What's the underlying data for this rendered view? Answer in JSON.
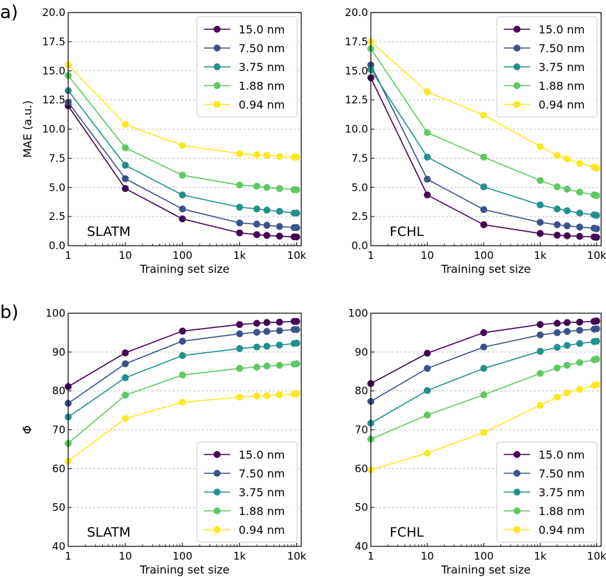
{
  "panel_labels": [
    "a)",
    "b)"
  ],
  "legend": {
    "entries": [
      "15.0 nm",
      "7.50 nm",
      "3.75 nm",
      "1.88 nm",
      "0.94 nm"
    ],
    "colors": [
      "#440154",
      "#3b528b",
      "#21918c",
      "#5ec962",
      "#fde725"
    ]
  },
  "chart_data": [
    {
      "id": "a-left",
      "type": "line",
      "model_label": "SLATM",
      "xlabel": "Training set size",
      "ylabel": "MAE (a.u.)",
      "xscale": "log",
      "xlim": [
        1,
        12000
      ],
      "xticks": [
        1,
        10,
        100,
        1000,
        10000
      ],
      "xtick_labels": [
        "1",
        "10",
        "100",
        "1k",
        "10k"
      ],
      "ylim": [
        0,
        20
      ],
      "yticks": [
        0,
        2.5,
        5,
        7.5,
        10,
        12.5,
        15,
        17.5,
        20
      ],
      "ytick_labels": [
        "0.0",
        "2.5",
        "5.0",
        "7.5",
        "10.0",
        "12.5",
        "15.0",
        "17.5",
        "20.0"
      ],
      "legend_position": "top-right",
      "x": [
        1,
        10,
        100,
        1000,
        2000,
        3000,
        5000,
        9000,
        10000
      ],
      "series": [
        {
          "name": "15.0 nm",
          "values": [
            12.0,
            4.9,
            2.3,
            1.1,
            0.95,
            0.88,
            0.82,
            0.76,
            0.75
          ]
        },
        {
          "name": "7.50 nm",
          "values": [
            12.3,
            5.75,
            3.15,
            1.95,
            1.85,
            1.75,
            1.65,
            1.55,
            1.55
          ]
        },
        {
          "name": "3.75 nm",
          "values": [
            13.3,
            6.9,
            4.35,
            3.3,
            3.15,
            3.05,
            2.95,
            2.8,
            2.8
          ]
        },
        {
          "name": "1.88 nm",
          "values": [
            14.6,
            8.4,
            6.05,
            5.2,
            5.1,
            5.0,
            4.9,
            4.8,
            4.8
          ]
        },
        {
          "name": "0.94 nm",
          "values": [
            15.5,
            10.4,
            8.6,
            7.9,
            7.8,
            7.75,
            7.65,
            7.6,
            7.6
          ]
        }
      ]
    },
    {
      "id": "a-right",
      "type": "line",
      "model_label": "FCHL",
      "xlabel": "Training set size",
      "ylabel": "",
      "xscale": "log",
      "xlim": [
        1,
        12000
      ],
      "xticks": [
        1,
        10,
        100,
        1000,
        10000
      ],
      "xtick_labels": [
        "1",
        "10",
        "100",
        "1k",
        "10k"
      ],
      "ylim": [
        0,
        20
      ],
      "yticks": [
        0,
        2.5,
        5,
        7.5,
        10,
        12.5,
        15,
        17.5,
        20
      ],
      "ytick_labels": [
        "0.0",
        "2.5",
        "5.0",
        "7.5",
        "10.0",
        "12.5",
        "15.0",
        "17.5",
        "20.0"
      ],
      "legend_position": "top-right",
      "x": [
        1,
        10,
        100,
        1000,
        2000,
        3000,
        5000,
        9000,
        10000
      ],
      "series": [
        {
          "name": "15.0 nm",
          "values": [
            14.4,
            4.35,
            1.8,
            1.05,
            0.9,
            0.85,
            0.8,
            0.75,
            0.72
          ]
        },
        {
          "name": "7.50 nm",
          "values": [
            15.5,
            5.7,
            3.1,
            2.0,
            1.8,
            1.7,
            1.6,
            1.5,
            1.45
          ]
        },
        {
          "name": "3.75 nm",
          "values": [
            15.1,
            7.6,
            5.05,
            3.5,
            3.15,
            3.0,
            2.8,
            2.65,
            2.6
          ]
        },
        {
          "name": "1.88 nm",
          "values": [
            16.9,
            9.7,
            7.6,
            5.6,
            5.05,
            4.85,
            4.6,
            4.35,
            4.3
          ]
        },
        {
          "name": "0.94 nm",
          "values": [
            17.5,
            13.2,
            11.2,
            8.5,
            7.75,
            7.45,
            7.05,
            6.75,
            6.65
          ]
        }
      ]
    },
    {
      "id": "b-left",
      "type": "line",
      "model_label": "SLATM",
      "xlabel": "Training set size",
      "ylabel": "Φ̄",
      "xscale": "log",
      "xlim": [
        1,
        12000
      ],
      "xticks": [
        1,
        10,
        100,
        1000,
        10000
      ],
      "xtick_labels": [
        "1",
        "10",
        "100",
        "1k",
        "10k"
      ],
      "ylim": [
        40,
        100
      ],
      "yticks": [
        40,
        50,
        60,
        70,
        80,
        90,
        100
      ],
      "ytick_labels": [
        "40",
        "50",
        "60",
        "70",
        "80",
        "90",
        "100"
      ],
      "legend_position": "bottom-right",
      "x": [
        1,
        10,
        100,
        1000,
        2000,
        3000,
        5000,
        9000,
        10000
      ],
      "series": [
        {
          "name": "15.0 nm",
          "values": [
            81.1,
            89.8,
            95.4,
            97.1,
            97.4,
            97.6,
            97.7,
            97.9,
            97.9
          ]
        },
        {
          "name": "7.50 nm",
          "values": [
            76.8,
            87.0,
            92.8,
            94.7,
            95.1,
            95.3,
            95.5,
            95.8,
            95.8
          ]
        },
        {
          "name": "3.75 nm",
          "values": [
            73.3,
            83.4,
            89.1,
            90.9,
            91.3,
            91.5,
            91.8,
            92.2,
            92.3
          ]
        },
        {
          "name": "1.88 nm",
          "values": [
            66.5,
            78.9,
            84.1,
            85.8,
            86.1,
            86.4,
            86.6,
            86.9,
            87.0
          ]
        },
        {
          "name": "0.94 nm",
          "values": [
            61.9,
            72.9,
            77.1,
            78.4,
            78.7,
            78.8,
            79.0,
            79.2,
            79.3
          ]
        }
      ]
    },
    {
      "id": "b-right",
      "type": "line",
      "model_label": "FCHL",
      "xlabel": "Training set size",
      "ylabel": "",
      "xscale": "log",
      "xlim": [
        1,
        12000
      ],
      "xticks": [
        1,
        10,
        100,
        1000,
        10000
      ],
      "xtick_labels": [
        "1",
        "10",
        "100",
        "1k",
        "10k"
      ],
      "ylim": [
        40,
        100
      ],
      "yticks": [
        40,
        50,
        60,
        70,
        80,
        90,
        100
      ],
      "ytick_labels": [
        "40",
        "50",
        "60",
        "70",
        "80",
        "90",
        "100"
      ],
      "legend_position": "bottom-right",
      "x": [
        1,
        10,
        100,
        1000,
        2000,
        3000,
        5000,
        9000,
        10000
      ],
      "series": [
        {
          "name": "15.0 nm",
          "values": [
            81.9,
            89.7,
            95.0,
            97.1,
            97.4,
            97.6,
            97.7,
            97.9,
            98.0
          ]
        },
        {
          "name": "7.50 nm",
          "values": [
            77.3,
            85.8,
            91.3,
            94.4,
            95.0,
            95.3,
            95.6,
            95.9,
            96.0
          ]
        },
        {
          "name": "3.75 nm",
          "values": [
            71.7,
            80.1,
            85.8,
            90.2,
            91.2,
            91.7,
            92.2,
            92.7,
            92.8
          ]
        },
        {
          "name": "1.88 nm",
          "values": [
            67.6,
            73.8,
            79.0,
            84.5,
            85.9,
            86.6,
            87.3,
            88.0,
            88.2
          ]
        },
        {
          "name": "0.94 nm",
          "values": [
            59.7,
            64.0,
            69.3,
            76.3,
            78.4,
            79.5,
            80.4,
            81.4,
            81.6
          ]
        }
      ]
    }
  ]
}
